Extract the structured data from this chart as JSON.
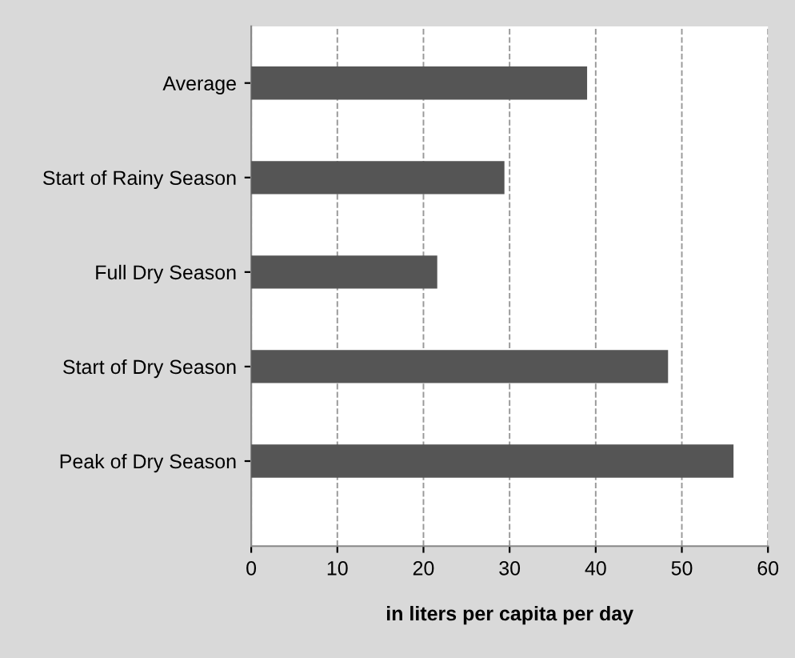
{
  "chart_data": {
    "type": "bar",
    "orientation": "horizontal",
    "categories": [
      "Average",
      "Start of Rainy Season",
      "Full Dry Season",
      "Start of Dry Season",
      "Peak of Dry Season"
    ],
    "values": [
      39,
      29.4,
      21.6,
      48.4,
      56
    ],
    "color": "#555555",
    "xlabel": "in liters per capita per day",
    "xlim": [
      0,
      60
    ],
    "xticks": [
      0,
      10,
      20,
      30,
      40,
      50,
      60
    ],
    "grid": "x"
  }
}
